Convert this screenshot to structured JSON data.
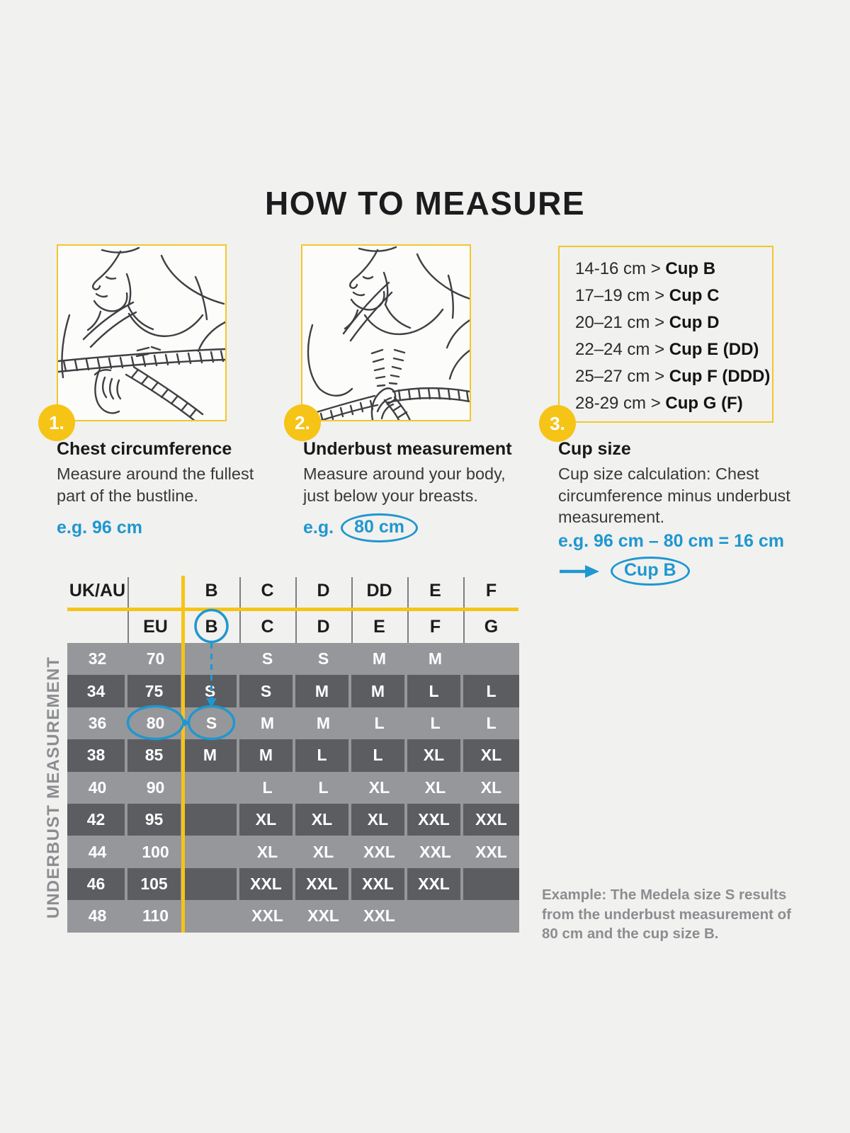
{
  "title": "HOW TO MEASURE",
  "steps": [
    {
      "number": "1.",
      "heading": "Chest circumference",
      "body": "Measure around the fullest part of the bustline.",
      "example_label": "e.g.",
      "example_value": "96 cm"
    },
    {
      "number": "2.",
      "heading": "Underbust measurement",
      "body": "Measure around your body, just below your breasts.",
      "example_label": "e.g.",
      "example_value": "80 cm"
    },
    {
      "number": "3.",
      "heading": "Cup size",
      "body": "Cup size calculation: Chest circumference minus underbust measurement.",
      "example_formula": "e.g. 96 cm – 80 cm = 16 cm",
      "example_result": "Cup B"
    }
  ],
  "cup_ranges": [
    {
      "range": "14-16 cm",
      "cup": "Cup B"
    },
    {
      "range": "17–19 cm",
      "cup": "Cup C"
    },
    {
      "range": "20–21 cm",
      "cup": "Cup D"
    },
    {
      "range": "22–24 cm",
      "cup": "Cup E (DD)"
    },
    {
      "range": "25–27 cm",
      "cup": "Cup F (DDD)"
    },
    {
      "range": "28-29 cm",
      "cup": "Cup G (F)"
    }
  ],
  "size_table": {
    "axis_label": "UNDERBUST MEASUREMENT",
    "header_row_ukau": [
      "UK/AU",
      "",
      "B",
      "C",
      "D",
      "DD",
      "E",
      "F"
    ],
    "header_row_eu": [
      "",
      "EU",
      "B",
      "C",
      "D",
      "E",
      "F",
      "G"
    ],
    "highlight": {
      "header_cup": "B",
      "eu_value": "80",
      "result_size": "S"
    },
    "rows": [
      {
        "ukau": "32",
        "eu": "70",
        "sizes": [
          "",
          "S",
          "S",
          "M",
          "M",
          ""
        ]
      },
      {
        "ukau": "34",
        "eu": "75",
        "sizes": [
          "S",
          "S",
          "M",
          "M",
          "L",
          "L"
        ]
      },
      {
        "ukau": "36",
        "eu": "80",
        "sizes": [
          "S",
          "M",
          "M",
          "L",
          "L",
          "L"
        ]
      },
      {
        "ukau": "38",
        "eu": "85",
        "sizes": [
          "M",
          "M",
          "L",
          "L",
          "XL",
          "XL"
        ]
      },
      {
        "ukau": "40",
        "eu": "90",
        "sizes": [
          "",
          "L",
          "L",
          "XL",
          "XL",
          "XL"
        ]
      },
      {
        "ukau": "42",
        "eu": "95",
        "sizes": [
          "",
          "XL",
          "XL",
          "XL",
          "XXL",
          "XXL"
        ]
      },
      {
        "ukau": "44",
        "eu": "100",
        "sizes": [
          "",
          "XL",
          "XL",
          "XXL",
          "XXL",
          "XXL"
        ]
      },
      {
        "ukau": "46",
        "eu": "105",
        "sizes": [
          "",
          "XXL",
          "XXL",
          "XXL",
          "XXL",
          ""
        ]
      },
      {
        "ukau": "48",
        "eu": "110",
        "sizes": [
          "",
          "XXL",
          "XXL",
          "XXL",
          "",
          ""
        ]
      }
    ]
  },
  "example_note": "Example: The Medela size S results from the underbust measurement of 80 cm and the cup size B.",
  "colors": {
    "accent_yellow": "#f6c417",
    "accent_blue": "#1f97d0",
    "row_light": "#96979a",
    "row_dark": "#5c5d60",
    "note_gray": "#8b8d90",
    "background": "#f1f1ef"
  }
}
